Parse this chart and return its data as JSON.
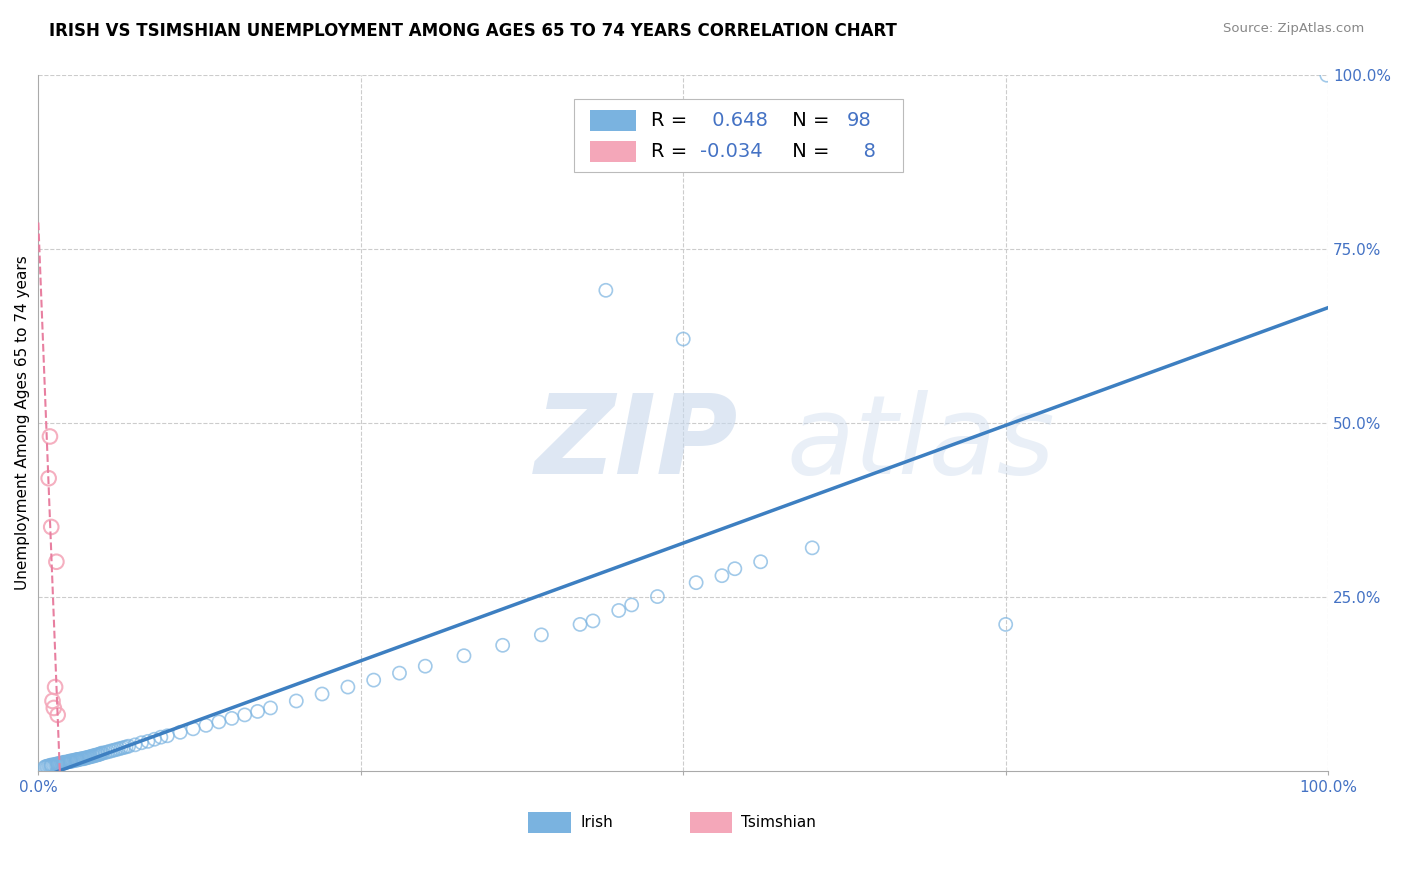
{
  "title": "IRISH VS TSIMSHIAN UNEMPLOYMENT AMONG AGES 65 TO 74 YEARS CORRELATION CHART",
  "source": "Source: ZipAtlas.com",
  "ylabel": "Unemployment Among Ages 65 to 74 years",
  "watermark": "ZIPatlas",
  "xlim": [
    0,
    1
  ],
  "ylim": [
    0,
    1
  ],
  "irish_color": "#7ab3e0",
  "tsimshian_color": "#f4a7b9",
  "irish_line_color": "#3d7fc1",
  "tsimshian_line_color": "#e87fa0",
  "irish_R": 0.648,
  "irish_N": 98,
  "tsimshian_R": -0.034,
  "tsimshian_N": 8,
  "grid_color": "#cccccc",
  "background_color": "#ffffff",
  "axis_label_color": "#4472c4",
  "title_fontsize": 12,
  "label_fontsize": 11,
  "legend_fontsize": 13,
  "irish_x": [
    0.005,
    0.006,
    0.007,
    0.008,
    0.009,
    0.01,
    0.01,
    0.011,
    0.012,
    0.013,
    0.014,
    0.015,
    0.015,
    0.016,
    0.017,
    0.018,
    0.019,
    0.02,
    0.02,
    0.021,
    0.022,
    0.023,
    0.024,
    0.025,
    0.025,
    0.026,
    0.027,
    0.028,
    0.029,
    0.03,
    0.03,
    0.031,
    0.032,
    0.033,
    0.034,
    0.035,
    0.036,
    0.037,
    0.038,
    0.039,
    0.04,
    0.041,
    0.042,
    0.043,
    0.044,
    0.045,
    0.046,
    0.047,
    0.048,
    0.049,
    0.05,
    0.052,
    0.054,
    0.056,
    0.058,
    0.06,
    0.062,
    0.064,
    0.066,
    0.068,
    0.07,
    0.075,
    0.08,
    0.085,
    0.09,
    0.095,
    0.1,
    0.11,
    0.12,
    0.13,
    0.14,
    0.15,
    0.16,
    0.17,
    0.18,
    0.2,
    0.22,
    0.24,
    0.26,
    0.28,
    0.3,
    0.33,
    0.36,
    0.39,
    0.42,
    0.43,
    0.45,
    0.46,
    0.48,
    0.51,
    0.53,
    0.54,
    0.56,
    0.6,
    0.75,
    0.999,
    0.44,
    0.5
  ],
  "irish_y": [
    0.005,
    0.006,
    0.006,
    0.007,
    0.007,
    0.007,
    0.008,
    0.008,
    0.008,
    0.009,
    0.009,
    0.009,
    0.01,
    0.01,
    0.01,
    0.011,
    0.011,
    0.011,
    0.012,
    0.012,
    0.012,
    0.013,
    0.013,
    0.013,
    0.014,
    0.014,
    0.014,
    0.015,
    0.015,
    0.015,
    0.016,
    0.016,
    0.016,
    0.017,
    0.017,
    0.017,
    0.018,
    0.018,
    0.019,
    0.019,
    0.02,
    0.02,
    0.021,
    0.021,
    0.022,
    0.022,
    0.023,
    0.023,
    0.024,
    0.025,
    0.025,
    0.026,
    0.027,
    0.028,
    0.029,
    0.03,
    0.031,
    0.032,
    0.033,
    0.034,
    0.035,
    0.037,
    0.04,
    0.042,
    0.045,
    0.048,
    0.05,
    0.055,
    0.06,
    0.065,
    0.07,
    0.075,
    0.08,
    0.085,
    0.09,
    0.1,
    0.11,
    0.12,
    0.13,
    0.14,
    0.15,
    0.165,
    0.18,
    0.195,
    0.21,
    0.215,
    0.23,
    0.238,
    0.25,
    0.27,
    0.28,
    0.29,
    0.3,
    0.32,
    0.21,
    0.999,
    0.69,
    0.62
  ],
  "tsimshian_x": [
    0.008,
    0.009,
    0.01,
    0.011,
    0.012,
    0.013,
    0.015,
    0.014
  ],
  "tsimshian_y": [
    0.42,
    0.48,
    0.35,
    0.1,
    0.09,
    0.12,
    0.08,
    0.3
  ]
}
